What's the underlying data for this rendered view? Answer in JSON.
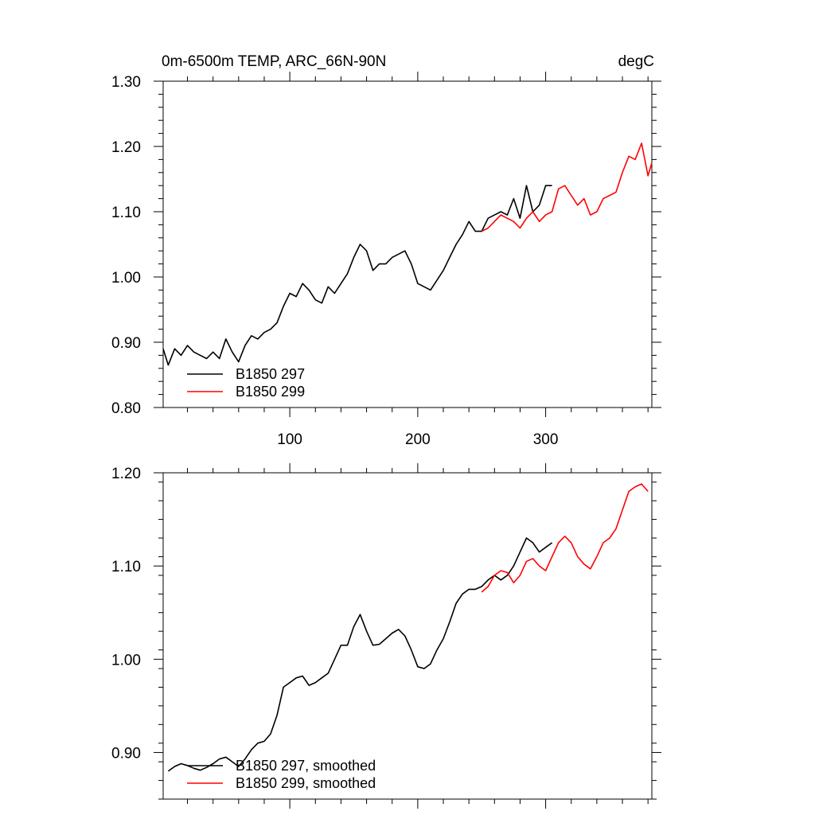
{
  "colors": {
    "series_297": "#000000",
    "series_299": "#ff0000"
  },
  "chart_data": [
    {
      "type": "line",
      "title": "0m-6500m TEMP, ARC_66N-90N",
      "units_label": "degC",
      "xlim": [
        1,
        383
      ],
      "ylim": [
        0.8,
        1.3
      ],
      "y_ticks": [
        0.8,
        0.9,
        1.0,
        1.1,
        1.2,
        1.3
      ],
      "y_tick_labels": [
        "0.80",
        "0.90",
        "1.00",
        "1.10",
        "1.20",
        "1.30"
      ],
      "x_ticks": [
        100,
        200,
        300
      ],
      "x_tick_labels": [
        "100",
        "200",
        "300"
      ],
      "legend_position": "bottom-left",
      "series": [
        {
          "name": "B1850 297",
          "color": "#000000",
          "x": [
            1,
            5,
            10,
            15,
            20,
            25,
            30,
            35,
            40,
            45,
            50,
            55,
            60,
            65,
            70,
            75,
            80,
            85,
            90,
            95,
            100,
            105,
            110,
            115,
            120,
            125,
            130,
            135,
            140,
            145,
            150,
            155,
            160,
            165,
            170,
            175,
            180,
            185,
            190,
            195,
            200,
            205,
            210,
            215,
            220,
            225,
            230,
            235,
            240,
            245,
            250,
            255,
            260,
            265,
            270,
            275,
            280,
            285,
            290,
            295,
            300,
            305
          ],
          "y": [
            0.89,
            0.865,
            0.89,
            0.88,
            0.895,
            0.885,
            0.88,
            0.875,
            0.885,
            0.875,
            0.905,
            0.885,
            0.87,
            0.895,
            0.91,
            0.905,
            0.915,
            0.92,
            0.93,
            0.955,
            0.975,
            0.97,
            0.99,
            0.98,
            0.965,
            0.96,
            0.985,
            0.975,
            0.99,
            1.005,
            1.03,
            1.05,
            1.04,
            1.01,
            1.02,
            1.02,
            1.03,
            1.035,
            1.04,
            1.02,
            0.99,
            0.985,
            0.98,
            0.995,
            1.01,
            1.03,
            1.05,
            1.065,
            1.085,
            1.07,
            1.07,
            1.09,
            1.095,
            1.1,
            1.095,
            1.12,
            1.09,
            1.14,
            1.1,
            1.11,
            1.14,
            1.14
          ]
        },
        {
          "name": "B1850 299",
          "color": "#ff0000",
          "x": [
            250,
            255,
            260,
            265,
            270,
            275,
            280,
            285,
            290,
            295,
            300,
            305,
            310,
            315,
            320,
            325,
            330,
            335,
            340,
            345,
            350,
            355,
            360,
            365,
            370,
            375,
            380,
            383
          ],
          "y": [
            1.07,
            1.075,
            1.085,
            1.095,
            1.09,
            1.085,
            1.075,
            1.09,
            1.1,
            1.085,
            1.095,
            1.1,
            1.135,
            1.14,
            1.125,
            1.11,
            1.12,
            1.095,
            1.1,
            1.12,
            1.125,
            1.13,
            1.16,
            1.185,
            1.18,
            1.205,
            1.155,
            1.175
          ]
        }
      ]
    },
    {
      "type": "line",
      "title": "",
      "xlim": [
        1,
        383
      ],
      "ylim": [
        0.85,
        1.2
      ],
      "y_ticks": [
        0.9,
        1.0,
        1.1,
        1.2
      ],
      "y_tick_labels": [
        "0.90",
        "1.00",
        "1.10",
        "1.20"
      ],
      "x_ticks": [
        100,
        200,
        300
      ],
      "legend_position": "bottom-left",
      "series": [
        {
          "name": "B1850 297, smoothed",
          "color": "#000000",
          "x": [
            5,
            10,
            15,
            20,
            25,
            30,
            35,
            40,
            45,
            50,
            55,
            60,
            65,
            70,
            75,
            80,
            85,
            90,
            95,
            100,
            105,
            110,
            115,
            120,
            125,
            130,
            135,
            140,
            145,
            150,
            155,
            160,
            165,
            170,
            175,
            180,
            185,
            190,
            195,
            200,
            205,
            210,
            215,
            220,
            225,
            230,
            235,
            240,
            245,
            250,
            255,
            260,
            265,
            270,
            275,
            280,
            285,
            290,
            295,
            300,
            305
          ],
          "y": [
            0.88,
            0.885,
            0.888,
            0.886,
            0.883,
            0.881,
            0.884,
            0.888,
            0.893,
            0.895,
            0.89,
            0.885,
            0.893,
            0.903,
            0.91,
            0.912,
            0.92,
            0.94,
            0.97,
            0.975,
            0.98,
            0.982,
            0.972,
            0.975,
            0.98,
            0.985,
            1.0,
            1.015,
            1.015,
            1.035,
            1.048,
            1.03,
            1.015,
            1.016,
            1.022,
            1.028,
            1.032,
            1.025,
            1.01,
            0.992,
            0.99,
            0.995,
            1.01,
            1.022,
            1.04,
            1.06,
            1.07,
            1.075,
            1.075,
            1.078,
            1.085,
            1.09,
            1.085,
            1.09,
            1.1,
            1.115,
            1.13,
            1.125,
            1.115,
            1.12,
            1.125
          ]
        },
        {
          "name": "B1850 299, smoothed",
          "color": "#ff0000",
          "x": [
            250,
            255,
            260,
            265,
            270,
            275,
            280,
            285,
            290,
            295,
            300,
            305,
            310,
            315,
            320,
            325,
            330,
            335,
            340,
            345,
            350,
            355,
            360,
            365,
            370,
            375,
            380
          ],
          "y": [
            1.072,
            1.078,
            1.09,
            1.095,
            1.093,
            1.082,
            1.09,
            1.105,
            1.108,
            1.1,
            1.095,
            1.11,
            1.125,
            1.132,
            1.125,
            1.11,
            1.102,
            1.097,
            1.11,
            1.125,
            1.13,
            1.14,
            1.16,
            1.18,
            1.185,
            1.188,
            1.18
          ]
        }
      ]
    }
  ]
}
